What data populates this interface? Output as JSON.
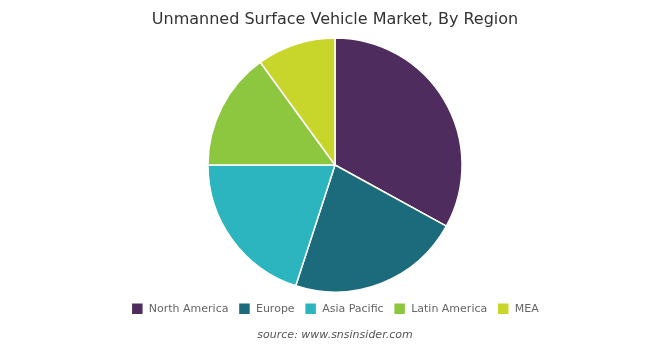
{
  "chart_data": {
    "type": "pie",
    "title": "Unmanned Surface Vehicle Market, By Region",
    "categories": [
      "North America",
      "Europe",
      "Asia Pacific",
      "Latin America",
      "MEA"
    ],
    "values": [
      33,
      22,
      20,
      15,
      10
    ],
    "colors": [
      "#4e2d5e",
      "#1c6b7c",
      "#2db5bf",
      "#8dc63f",
      "#c8d62b"
    ],
    "legend": "bottom",
    "annotations": [
      "source: www.snsinsider.com"
    ]
  }
}
